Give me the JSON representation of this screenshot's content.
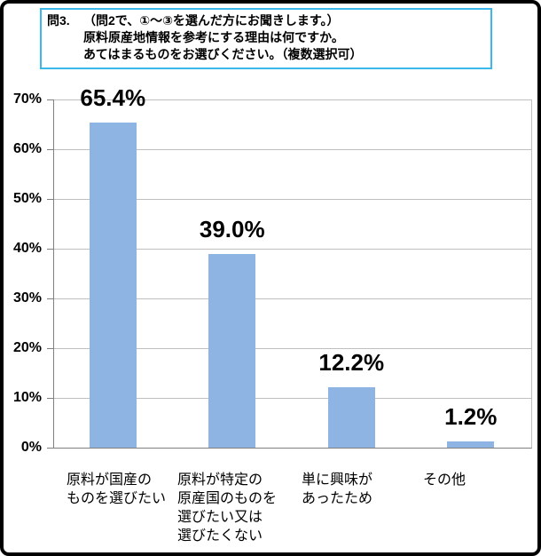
{
  "question_box": {
    "number": "問3.",
    "lines": [
      "（問2で、①～③を選んだ方にお聞きします。）",
      "原料原産地情報を参考にする理由は何ですか。",
      "あてはまるものをお選びください。（複数選択可）"
    ]
  },
  "chart_data": {
    "type": "bar",
    "title": "",
    "categories": [
      "原料が国産の\nものを選びたい",
      "原料が特定の\n原産国のものを\n選びたい又は\n選びたくない",
      "単に興味が\nあったため",
      "その他"
    ],
    "values": [
      65.4,
      39.0,
      12.2,
      1.2
    ],
    "data_labels": [
      "65.4%",
      "39.0%",
      "12.2%",
      "1.2%"
    ],
    "y_tick_labels": [
      "0%",
      "10%",
      "20%",
      "30%",
      "40%",
      "50%",
      "60%",
      "70%"
    ],
    "ylim": [
      0,
      70
    ],
    "grid": true,
    "legend": false
  },
  "colors": {
    "bar": "#8DB4E2",
    "gridline": "#BFBFBF",
    "axis": "#808080",
    "question_box_border": "#3BB8EC",
    "outer_border": "#000000",
    "text": "#000000",
    "background": "#FFFFFF"
  }
}
